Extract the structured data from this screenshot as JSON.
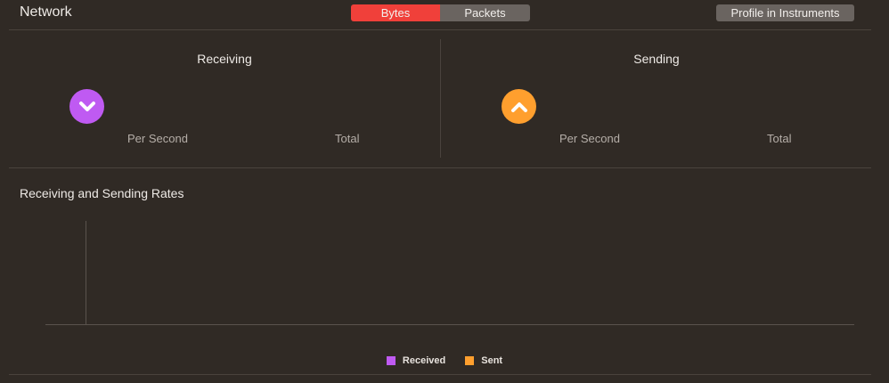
{
  "header": {
    "title": "Network",
    "segmented": {
      "options": [
        {
          "label": "Bytes",
          "selected": true
        },
        {
          "label": "Packets",
          "selected": false
        }
      ]
    },
    "profile_button": "Profile in Instruments"
  },
  "receiving": {
    "title": "Receiving",
    "icon": "chevron-down-icon",
    "per_second_label": "Per Second",
    "total_label": "Total",
    "color": "#bf5af2"
  },
  "sending": {
    "title": "Sending",
    "icon": "chevron-up-icon",
    "per_second_label": "Per Second",
    "total_label": "Total",
    "color": "#ff9f2e"
  },
  "chart": {
    "title": "Receiving and Sending Rates",
    "legend": [
      {
        "label": "Received",
        "color": "#bf5af2"
      },
      {
        "label": "Sent",
        "color": "#ff9f2e"
      }
    ]
  }
}
